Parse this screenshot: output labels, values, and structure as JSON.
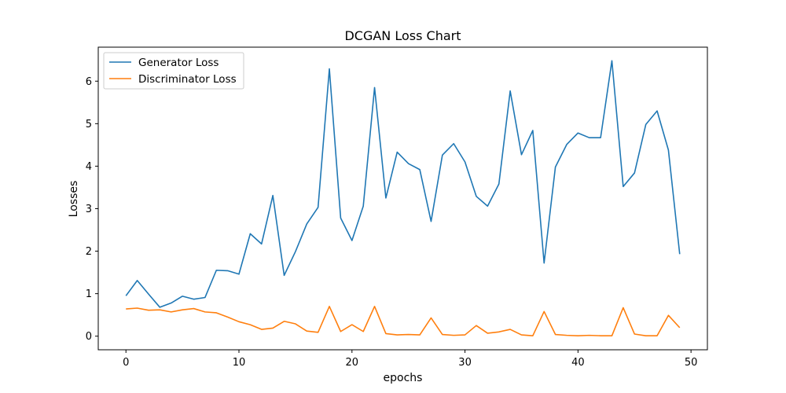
{
  "chart_data": {
    "type": "line",
    "title": "DCGAN Loss Chart",
    "xlabel": "epochs",
    "ylabel": "Losses",
    "xlim": [
      -2.45,
      51.45
    ],
    "ylim": [
      -0.32,
      6.8
    ],
    "xticks": [
      0,
      10,
      20,
      30,
      40,
      50
    ],
    "yticks": [
      0,
      1,
      2,
      3,
      4,
      5,
      6
    ],
    "grid": false,
    "legend_position": "upper left",
    "x": [
      0,
      1,
      2,
      3,
      4,
      5,
      6,
      7,
      8,
      9,
      10,
      11,
      12,
      13,
      14,
      15,
      16,
      17,
      18,
      19,
      20,
      21,
      22,
      23,
      24,
      25,
      26,
      27,
      28,
      29,
      30,
      31,
      32,
      33,
      34,
      35,
      36,
      37,
      38,
      39,
      40,
      41,
      42,
      43,
      44,
      45,
      46,
      47,
      48,
      49
    ],
    "series": [
      {
        "name": "Generator Loss",
        "color": "#1f77b4",
        "values": [
          0.95,
          1.31,
          0.99,
          0.68,
          0.78,
          0.94,
          0.87,
          0.91,
          1.55,
          1.54,
          1.46,
          2.41,
          2.17,
          3.31,
          1.43,
          1.99,
          2.64,
          3.03,
          6.29,
          2.78,
          2.25,
          3.06,
          5.85,
          3.25,
          4.33,
          4.06,
          3.92,
          2.7,
          4.26,
          4.53,
          4.1,
          3.29,
          3.06,
          3.58,
          5.77,
          4.27,
          4.84,
          1.72,
          3.98,
          4.51,
          4.78,
          4.67,
          4.67,
          6.48,
          3.52,
          3.84,
          4.98,
          5.3,
          4.38,
          1.93
        ]
      },
      {
        "name": "Discriminator Loss",
        "color": "#ff7f0e",
        "values": [
          0.64,
          0.66,
          0.61,
          0.62,
          0.57,
          0.62,
          0.65,
          0.57,
          0.55,
          0.45,
          0.34,
          0.27,
          0.16,
          0.19,
          0.35,
          0.29,
          0.12,
          0.09,
          0.7,
          0.11,
          0.27,
          0.11,
          0.7,
          0.06,
          0.03,
          0.04,
          0.03,
          0.43,
          0.04,
          0.02,
          0.03,
          0.25,
          0.07,
          0.1,
          0.16,
          0.03,
          0.01,
          0.58,
          0.04,
          0.02,
          0.01,
          0.02,
          0.01,
          0.01,
          0.67,
          0.05,
          0.01,
          0.01,
          0.49,
          0.2
        ]
      }
    ]
  }
}
